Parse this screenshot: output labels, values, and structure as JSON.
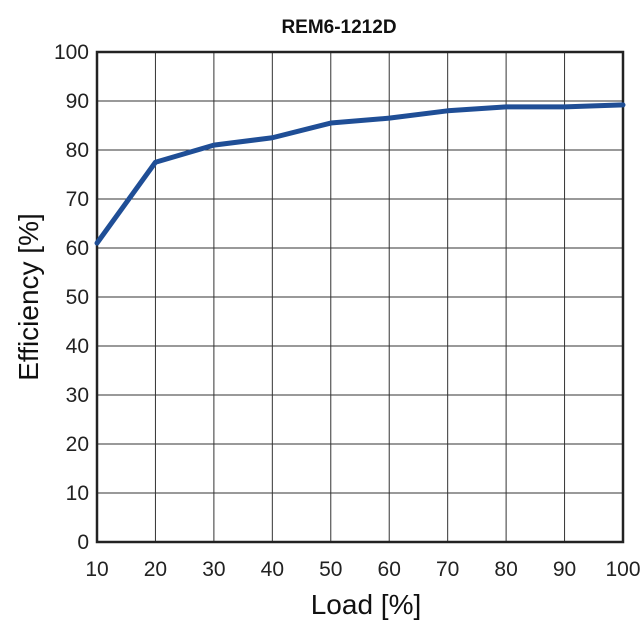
{
  "chart_data": {
    "type": "line",
    "title": "REM6-1212D",
    "xlabel": "Load [%]",
    "ylabel": "Efficiency [%]",
    "xlim": [
      10,
      100
    ],
    "ylim": [
      0,
      100
    ],
    "x_ticks": [
      10,
      20,
      30,
      40,
      50,
      60,
      70,
      80,
      90,
      100
    ],
    "y_ticks": [
      0,
      10,
      20,
      30,
      40,
      50,
      60,
      70,
      80,
      90,
      100
    ],
    "grid": true,
    "x": [
      10,
      20,
      30,
      40,
      50,
      60,
      70,
      80,
      90,
      100
    ],
    "series": [
      {
        "values": [
          61,
          77.5,
          81,
          82.5,
          85.5,
          86.5,
          88,
          88.8,
          88.8,
          89.2
        ],
        "color": "#1f4e96"
      }
    ]
  }
}
